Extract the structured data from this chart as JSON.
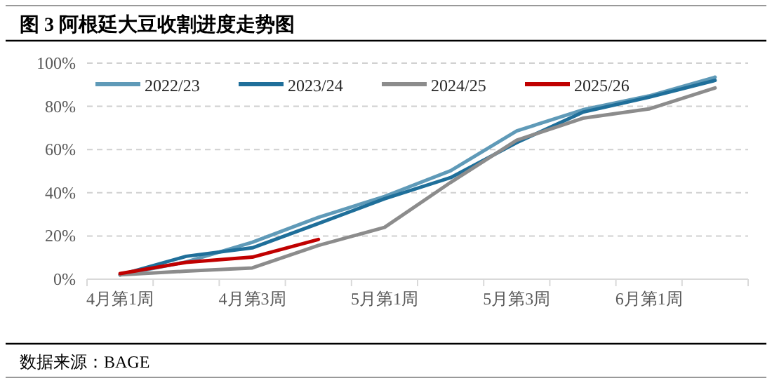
{
  "chart_data": {
    "type": "line",
    "title": "图 3  阿根廷大豆收割进度走势图",
    "categories": [
      "4月第1周",
      null,
      "4月第3周",
      null,
      "5月第1周",
      null,
      "5月第3周",
      null,
      "6月第1周",
      null
    ],
    "series": [
      {
        "name": "2022/23",
        "color": "#5f9ab8",
        "values": [
          2,
          8,
          17.1,
          28.6,
          38.3,
          50.2,
          68.6,
          78.4,
          84.8,
          93.5
        ]
      },
      {
        "name": "2023/24",
        "color": "#1f6f9a",
        "values": [
          2,
          10.6,
          14.5,
          25.8,
          37.2,
          47,
          63.2,
          77.3,
          84.2,
          92
        ]
      },
      {
        "name": "2024/25",
        "color": "#8c8c8c",
        "values": [
          2,
          3.7,
          5.2,
          15.6,
          24,
          44.8,
          64.3,
          74.5,
          78.8,
          88.5
        ]
      },
      {
        "name": "2025/26",
        "color": "#c00000",
        "values": [
          2.6,
          7.8,
          10.2,
          18.4,
          null,
          null,
          null,
          null,
          null,
          null
        ]
      }
    ],
    "ylim": [
      0,
      100
    ],
    "yticks": [
      {
        "value": 0,
        "label": "0%"
      },
      {
        "value": 20,
        "label": "20%"
      },
      {
        "value": 40,
        "label": "40%"
      },
      {
        "value": 60,
        "label": "60%"
      },
      {
        "value": 80,
        "label": "80%"
      },
      {
        "value": 100,
        "label": "100%"
      }
    ],
    "grid": "y",
    "legend": "top",
    "annotations": [
      "数据来源：BAGE"
    ]
  }
}
